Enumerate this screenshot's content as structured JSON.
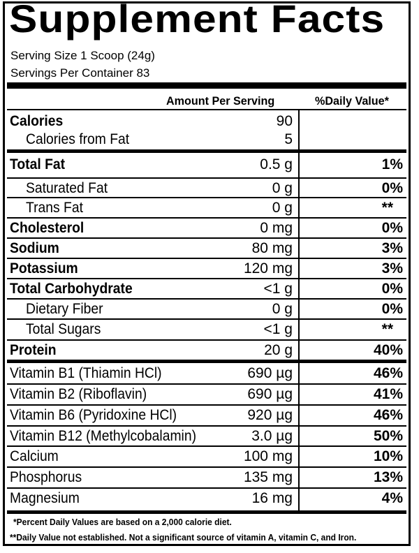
{
  "title": "Supplement Facts",
  "serving_size": "Serving Size 1 Scoop (24g)",
  "servings_per_container": "Servings Per Container 83",
  "header": {
    "amount": "Amount Per Serving",
    "dv": "%Daily Value*"
  },
  "calories": {
    "label": "Calories",
    "amount": "90"
  },
  "calories_fat": {
    "label": "Calories from Fat",
    "amount": "5"
  },
  "rows": [
    {
      "label": "Total Fat",
      "amount": "0.5 g",
      "dv": "1%"
    },
    {
      "label": "Saturated Fat",
      "amount": "0 g",
      "dv": "0%"
    },
    {
      "label": "Trans Fat",
      "amount": "0 g",
      "dv": "**"
    },
    {
      "label": "Cholesterol",
      "amount": "0 mg",
      "dv": "0%"
    },
    {
      "label": "Sodium",
      "amount": "80 mg",
      "dv": "3%"
    },
    {
      "label": "Potassium",
      "amount": "120 mg",
      "dv": "3%"
    },
    {
      "label": "Total Carbohydrate",
      "amount": "<1 g",
      "dv": "0%"
    },
    {
      "label": "Dietary Fiber",
      "amount": "0 g",
      "dv": "0%"
    },
    {
      "label": "Total Sugars",
      "amount": "<1 g",
      "dv": "**"
    },
    {
      "label": "Protein",
      "amount": "20 g",
      "dv": "40%"
    },
    {
      "label": "Vitamin B1 (Thiamin HCl)",
      "amount": "690 µg",
      "dv": "46%"
    },
    {
      "label": "Vitamin B2 (Riboflavin)",
      "amount": "690 µg",
      "dv": "41%"
    },
    {
      "label": "Vitamin B6 (Pyridoxine HCl)",
      "amount": "920 µg",
      "dv": "46%"
    },
    {
      "label": "Vitamin B12 (Methylcobalamin)",
      "amount": "3.0 µg",
      "dv": "50%"
    },
    {
      "label": "Calcium",
      "amount": "100 mg",
      "dv": "10%"
    },
    {
      "label": "Phosphorus",
      "amount": "135 mg",
      "dv": "13%"
    },
    {
      "label": "Magnesium",
      "amount": "16 mg",
      "dv": "4%"
    }
  ],
  "footnotes": [
    "*Percent Daily Values are based on a 2,000 calorie diet.",
    "**Daily Value not established.  Not a significant source of vitamin A, vitamin C, and Iron."
  ]
}
